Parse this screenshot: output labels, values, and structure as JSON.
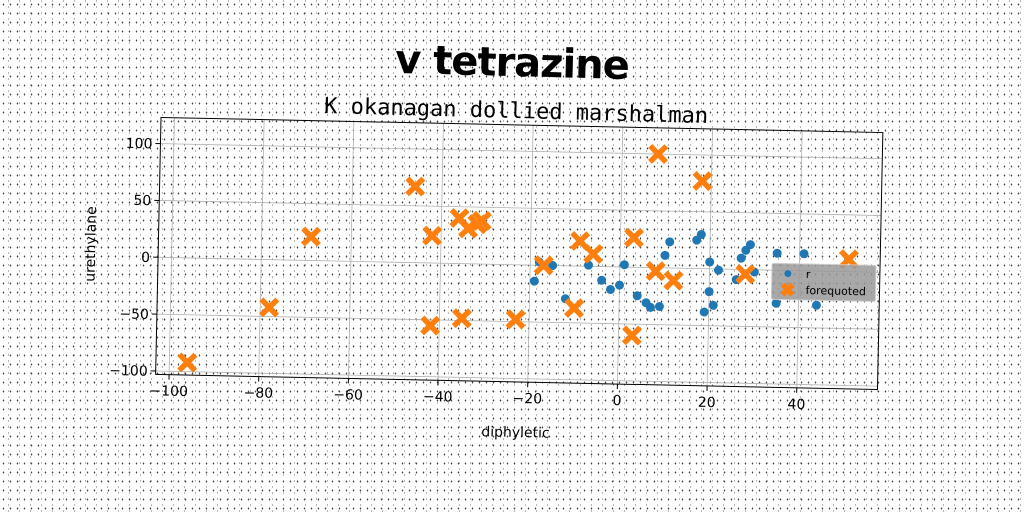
{
  "title": "v tetrazine",
  "chart_data": {
    "type": "scatter",
    "title": "K okanagan dollied marshalman",
    "xlabel": "diphyletic",
    "ylabel": "urethylane",
    "xlim": [
      -103,
      58
    ],
    "ylim": [
      -103,
      123
    ],
    "xticks": [
      -100,
      -80,
      -60,
      -40,
      -20,
      0,
      20,
      40
    ],
    "yticks": [
      -100,
      -50,
      0,
      50,
      100
    ],
    "grid": true,
    "legend_position": "right",
    "series": [
      {
        "name": "r",
        "marker": "circle",
        "color": "#1f77b4",
        "points": [
          [
            -19,
            -14
          ],
          [
            -18,
            3
          ],
          [
            -15,
            0
          ],
          [
            -12,
            -29
          ],
          [
            -7,
            1
          ],
          [
            -4,
            -12
          ],
          [
            -2,
            -20
          ],
          [
            0,
            -16
          ],
          [
            1,
            2
          ],
          [
            4,
            -25
          ],
          [
            6,
            -31
          ],
          [
            7,
            -35
          ],
          [
            9,
            -34
          ],
          [
            10,
            11
          ],
          [
            11,
            23
          ],
          [
            17,
            25
          ],
          [
            18,
            30
          ],
          [
            19,
            -38
          ],
          [
            20,
            -20
          ],
          [
            21,
            -32
          ],
          [
            22,
            -1
          ],
          [
            20,
            6
          ],
          [
            26,
            -9
          ],
          [
            27,
            10
          ],
          [
            28,
            17
          ],
          [
            29,
            22
          ],
          [
            30,
            -2
          ],
          [
            35,
            -29
          ],
          [
            35,
            15
          ],
          [
            41,
            15
          ],
          [
            44,
            -30
          ]
        ]
      },
      {
        "name": "forequoted",
        "marker": "x",
        "color": "#ff7f0e",
        "points": [
          [
            -96,
            -92
          ],
          [
            -78,
            -42
          ],
          [
            -69,
            21
          ],
          [
            -46,
            67
          ],
          [
            -42,
            24
          ],
          [
            -42,
            -55
          ],
          [
            -36,
            40
          ],
          [
            -35,
            -48
          ],
          [
            -34,
            31
          ],
          [
            -32,
            35
          ],
          [
            -31,
            38
          ],
          [
            -23,
            -48
          ],
          [
            -17,
            0
          ],
          [
            -10,
            -37
          ],
          [
            -9,
            22
          ],
          [
            -6,
            11
          ],
          [
            3,
            26
          ],
          [
            3,
            -60
          ],
          [
            8,
            100
          ],
          [
            8,
            -3
          ],
          [
            12,
            -11
          ],
          [
            18,
            77
          ],
          [
            28,
            -4
          ],
          [
            51,
            11
          ]
        ]
      }
    ]
  }
}
